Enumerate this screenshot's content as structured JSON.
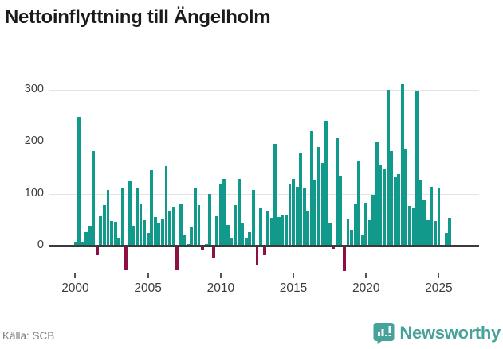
{
  "title": "Nettoinflyttning till Ängelholm",
  "footer": {
    "source": "Källa: SCB",
    "brand": "Newsworthy"
  },
  "colors": {
    "positive_bar": "#119a8c",
    "negative_bar": "#8e0f42",
    "gridline": "#e4e4e4",
    "zero_axis": "#3b3b3b",
    "axis_text": "#3a3a3a",
    "source_text": "#818181",
    "brand_teal": "#47a29b",
    "title_text": "#1b1b1b"
  },
  "chart_data": {
    "type": "bar",
    "title": "Nettoinflyttning till Ängelholm",
    "frequency": "quarterly",
    "start_period": "2000-Q1",
    "grid": true,
    "legend": "none",
    "xlabel": "",
    "ylabel": "",
    "ylim": [
      -60,
      330
    ],
    "y_axis_values": [
      0,
      100,
      200,
      300
    ],
    "x_tick_labels": [
      "2000",
      "2005",
      "2010",
      "2015",
      "2020",
      "2025"
    ],
    "x_tick_indices": [
      0,
      20,
      40,
      60,
      80,
      100
    ],
    "values": [
      7,
      248,
      8,
      26,
      38,
      182,
      -17,
      56,
      78,
      107,
      48,
      46,
      16,
      112,
      -45,
      124,
      38,
      110,
      80,
      49,
      25,
      145,
      55,
      45,
      50,
      152,
      65,
      73,
      -46,
      80,
      22,
      3,
      35,
      111,
      78,
      -8,
      3,
      100,
      -22,
      57,
      118,
      129,
      39,
      15,
      78,
      129,
      43,
      16,
      26,
      107,
      -35,
      72,
      -17,
      67,
      53,
      196,
      55,
      58,
      60,
      117,
      129,
      113,
      177,
      112,
      67,
      220,
      125,
      189,
      159,
      240,
      42,
      -4,
      207,
      135,
      -47,
      52,
      30,
      79,
      164,
      22,
      83,
      49,
      98,
      199,
      155,
      147,
      299,
      182,
      132,
      138,
      310,
      185,
      77,
      71,
      296,
      127,
      87,
      49,
      113,
      48,
      110,
      2,
      25,
      54
    ]
  }
}
